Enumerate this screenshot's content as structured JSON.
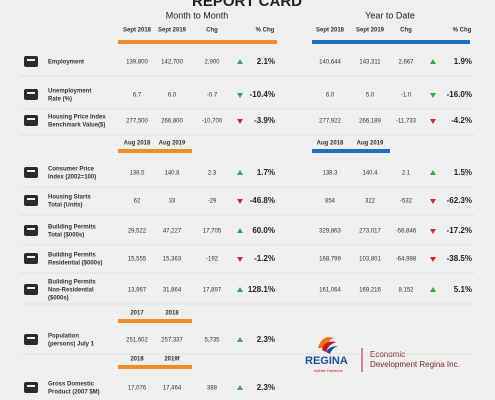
{
  "header": {
    "title": "REPORT CARD",
    "month_to_month": "Month to Month",
    "year_to_date": "Year to Date",
    "columns": [
      "Sept 2018",
      "Sept 2019",
      "Chg",
      "% Chg"
    ],
    "ytd_columns": [
      "Sept 2018",
      "Sept 2019",
      "Chg",
      "% Chg"
    ]
  },
  "groups": [
    {
      "rows": [
        {
          "label": [
            "Employment"
          ],
          "month": [
            "139,800",
            "142,700",
            "2,900",
            "2.1%"
          ],
          "ytd": [
            "140,644",
            "143,311",
            "2,667",
            "1.9%"
          ]
        },
        {
          "label": [
            "Unemployment",
            "Rate (%)"
          ],
          "month": [
            "6.7",
            "6.0",
            "-0.7",
            "-10.4%"
          ],
          "ytd": [
            "6.0",
            "5.0",
            "-1.0",
            "-16.0%"
          ]
        },
        {
          "label": [
            "Housing Price Index",
            "Benchmark Value($)"
          ],
          "month": [
            "277,500",
            "266,800",
            "-10,700",
            "-3.9%"
          ],
          "ytd": [
            "277,922",
            "266,189",
            "-11,733",
            "-4.2%"
          ]
        }
      ]
    },
    {
      "periods": [
        "Aug 2018",
        "Aug 2019"
      ],
      "ytd_periods": [
        "Aug 2018",
        "Aug 2019"
      ],
      "rows": [
        {
          "label": [
            "Consumer Price",
            "Index (2002=100)"
          ],
          "month": [
            "138.5",
            "140.8",
            "2.3",
            "1.7%"
          ],
          "ytd": [
            "138.3",
            "140.4",
            "2.1",
            "1.5%"
          ]
        },
        {
          "label": [
            "Housing Starts",
            "Total (Units)"
          ],
          "month": [
            "62",
            "33",
            "-29",
            "-46.8%"
          ],
          "ytd": [
            "854",
            "322",
            "-532",
            "-62.3%"
          ]
        },
        {
          "label": [
            "Building Permits",
            "Total ($000s)"
          ],
          "month": [
            "29,522",
            "47,227",
            "17,705",
            "60.0%"
          ],
          "ytd": [
            "329,863",
            "273,017",
            "-56,846",
            "-17.2%"
          ]
        },
        {
          "label": [
            "Building Permits",
            "Residential ($000s)"
          ],
          "month": [
            "15,555",
            "15,363",
            "-192",
            "-1.2%"
          ],
          "ytd": [
            "168,799",
            "103,801",
            "-64,998",
            "-38.5%"
          ]
        },
        {
          "label": [
            "Building Permits",
            "Non-Residential",
            "($000s)"
          ],
          "month": [
            "13,967",
            "31,864",
            "17,897",
            "128.1%"
          ],
          "ytd": [
            "161,064",
            "169,216",
            "8,152",
            "5.1%"
          ]
        }
      ]
    },
    {
      "periods": [
        "2017",
        "2018"
      ],
      "rows": [
        {
          "label": [
            "Population",
            "(persons) July 1"
          ],
          "month": [
            "251,602",
            "257,337",
            "5,735",
            "2.3%"
          ]
        }
      ]
    },
    {
      "periods": [
        "2018",
        "2019f"
      ],
      "rows": [
        {
          "label": [
            "Gross Domestic",
            "Product (2007 $M)"
          ],
          "month": [
            "17,076",
            "17,464",
            "388",
            "2.3%"
          ]
        }
      ]
    }
  ],
  "logo": {
    "name": "REGINA",
    "tagline": "Infinite Horizons",
    "org": [
      "Economic",
      "Development Regina Inc."
    ]
  }
}
